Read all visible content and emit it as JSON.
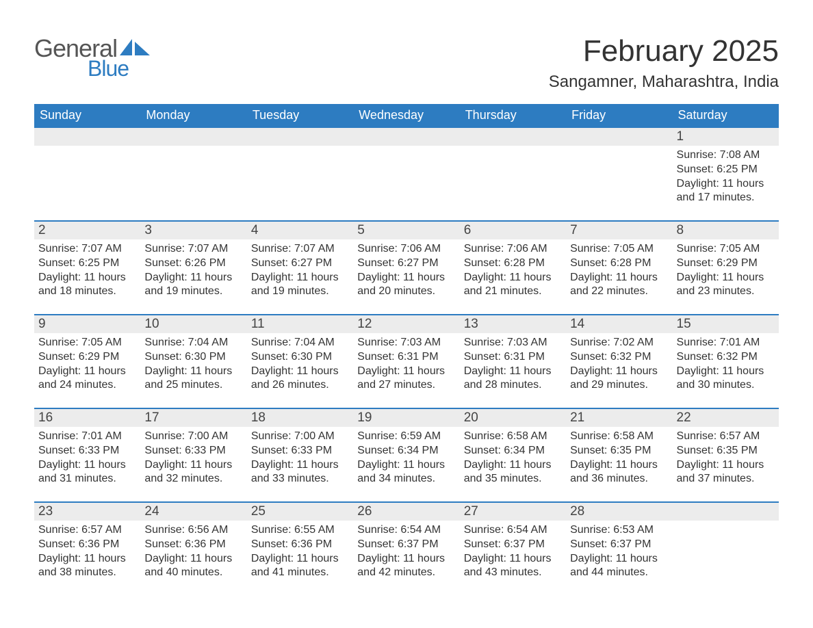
{
  "logo": {
    "text1": "General",
    "text2": "Blue",
    "sail_color": "#2d7cc1",
    "text1_color": "#555555"
  },
  "header": {
    "month_title": "February 2025",
    "location": "Sangamner, Maharashtra, India"
  },
  "colors": {
    "header_bg": "#2d7cc1",
    "header_fg": "#ffffff",
    "daynum_bg": "#ececec",
    "border": "#2d7cc1",
    "text": "#333333"
  },
  "fonts": {
    "month_title_pt": 44,
    "location_pt": 24,
    "dayheader_pt": 18,
    "daynum_pt": 19,
    "body_pt": 16
  },
  "day_headers": [
    "Sunday",
    "Monday",
    "Tuesday",
    "Wednesday",
    "Thursday",
    "Friday",
    "Saturday"
  ],
  "weeks": [
    [
      null,
      null,
      null,
      null,
      null,
      null,
      {
        "n": "1",
        "sunrise": "Sunrise: 7:08 AM",
        "sunset": "Sunset: 6:25 PM",
        "daylight": "Daylight: 11 hours and 17 minutes."
      }
    ],
    [
      {
        "n": "2",
        "sunrise": "Sunrise: 7:07 AM",
        "sunset": "Sunset: 6:25 PM",
        "daylight": "Daylight: 11 hours and 18 minutes."
      },
      {
        "n": "3",
        "sunrise": "Sunrise: 7:07 AM",
        "sunset": "Sunset: 6:26 PM",
        "daylight": "Daylight: 11 hours and 19 minutes."
      },
      {
        "n": "4",
        "sunrise": "Sunrise: 7:07 AM",
        "sunset": "Sunset: 6:27 PM",
        "daylight": "Daylight: 11 hours and 19 minutes."
      },
      {
        "n": "5",
        "sunrise": "Sunrise: 7:06 AM",
        "sunset": "Sunset: 6:27 PM",
        "daylight": "Daylight: 11 hours and 20 minutes."
      },
      {
        "n": "6",
        "sunrise": "Sunrise: 7:06 AM",
        "sunset": "Sunset: 6:28 PM",
        "daylight": "Daylight: 11 hours and 21 minutes."
      },
      {
        "n": "7",
        "sunrise": "Sunrise: 7:05 AM",
        "sunset": "Sunset: 6:28 PM",
        "daylight": "Daylight: 11 hours and 22 minutes."
      },
      {
        "n": "8",
        "sunrise": "Sunrise: 7:05 AM",
        "sunset": "Sunset: 6:29 PM",
        "daylight": "Daylight: 11 hours and 23 minutes."
      }
    ],
    [
      {
        "n": "9",
        "sunrise": "Sunrise: 7:05 AM",
        "sunset": "Sunset: 6:29 PM",
        "daylight": "Daylight: 11 hours and 24 minutes."
      },
      {
        "n": "10",
        "sunrise": "Sunrise: 7:04 AM",
        "sunset": "Sunset: 6:30 PM",
        "daylight": "Daylight: 11 hours and 25 minutes."
      },
      {
        "n": "11",
        "sunrise": "Sunrise: 7:04 AM",
        "sunset": "Sunset: 6:30 PM",
        "daylight": "Daylight: 11 hours and 26 minutes."
      },
      {
        "n": "12",
        "sunrise": "Sunrise: 7:03 AM",
        "sunset": "Sunset: 6:31 PM",
        "daylight": "Daylight: 11 hours and 27 minutes."
      },
      {
        "n": "13",
        "sunrise": "Sunrise: 7:03 AM",
        "sunset": "Sunset: 6:31 PM",
        "daylight": "Daylight: 11 hours and 28 minutes."
      },
      {
        "n": "14",
        "sunrise": "Sunrise: 7:02 AM",
        "sunset": "Sunset: 6:32 PM",
        "daylight": "Daylight: 11 hours and 29 minutes."
      },
      {
        "n": "15",
        "sunrise": "Sunrise: 7:01 AM",
        "sunset": "Sunset: 6:32 PM",
        "daylight": "Daylight: 11 hours and 30 minutes."
      }
    ],
    [
      {
        "n": "16",
        "sunrise": "Sunrise: 7:01 AM",
        "sunset": "Sunset: 6:33 PM",
        "daylight": "Daylight: 11 hours and 31 minutes."
      },
      {
        "n": "17",
        "sunrise": "Sunrise: 7:00 AM",
        "sunset": "Sunset: 6:33 PM",
        "daylight": "Daylight: 11 hours and 32 minutes."
      },
      {
        "n": "18",
        "sunrise": "Sunrise: 7:00 AM",
        "sunset": "Sunset: 6:33 PM",
        "daylight": "Daylight: 11 hours and 33 minutes."
      },
      {
        "n": "19",
        "sunrise": "Sunrise: 6:59 AM",
        "sunset": "Sunset: 6:34 PM",
        "daylight": "Daylight: 11 hours and 34 minutes."
      },
      {
        "n": "20",
        "sunrise": "Sunrise: 6:58 AM",
        "sunset": "Sunset: 6:34 PM",
        "daylight": "Daylight: 11 hours and 35 minutes."
      },
      {
        "n": "21",
        "sunrise": "Sunrise: 6:58 AM",
        "sunset": "Sunset: 6:35 PM",
        "daylight": "Daylight: 11 hours and 36 minutes."
      },
      {
        "n": "22",
        "sunrise": "Sunrise: 6:57 AM",
        "sunset": "Sunset: 6:35 PM",
        "daylight": "Daylight: 11 hours and 37 minutes."
      }
    ],
    [
      {
        "n": "23",
        "sunrise": "Sunrise: 6:57 AM",
        "sunset": "Sunset: 6:36 PM",
        "daylight": "Daylight: 11 hours and 38 minutes."
      },
      {
        "n": "24",
        "sunrise": "Sunrise: 6:56 AM",
        "sunset": "Sunset: 6:36 PM",
        "daylight": "Daylight: 11 hours and 40 minutes."
      },
      {
        "n": "25",
        "sunrise": "Sunrise: 6:55 AM",
        "sunset": "Sunset: 6:36 PM",
        "daylight": "Daylight: 11 hours and 41 minutes."
      },
      {
        "n": "26",
        "sunrise": "Sunrise: 6:54 AM",
        "sunset": "Sunset: 6:37 PM",
        "daylight": "Daylight: 11 hours and 42 minutes."
      },
      {
        "n": "27",
        "sunrise": "Sunrise: 6:54 AM",
        "sunset": "Sunset: 6:37 PM",
        "daylight": "Daylight: 11 hours and 43 minutes."
      },
      {
        "n": "28",
        "sunrise": "Sunrise: 6:53 AM",
        "sunset": "Sunset: 6:37 PM",
        "daylight": "Daylight: 11 hours and 44 minutes."
      },
      null
    ]
  ]
}
